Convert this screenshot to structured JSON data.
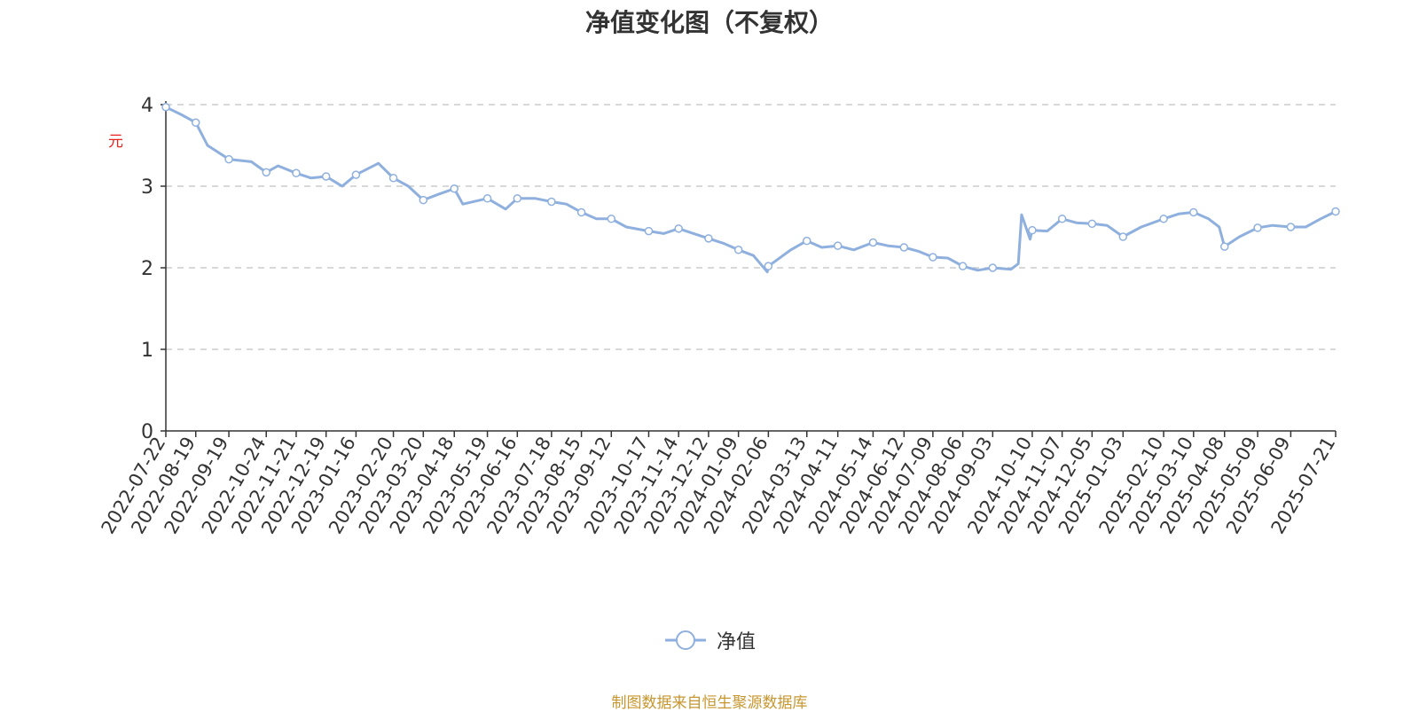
{
  "chart_data": {
    "type": "line",
    "title": "净值变化图（不复权）",
    "ylabel": "元",
    "xlabel": "",
    "ylim": [
      0,
      4
    ],
    "y_ticks": [
      "0",
      "1",
      "2",
      "3",
      "4"
    ],
    "grid": true,
    "legend_position": "bottom-center",
    "x_tick_labels": [
      "2022-07-22",
      "2022-08-19",
      "2022-09-19",
      "2022-10-24",
      "2022-11-21",
      "2022-12-19",
      "2023-01-16",
      "2023-02-20",
      "2023-03-20",
      "2023-04-18",
      "2023-05-19",
      "2023-06-16",
      "2023-07-18",
      "2023-08-15",
      "2023-09-12",
      "2023-10-17",
      "2023-11-14",
      "2023-12-12",
      "2024-01-09",
      "2024-02-06",
      "2024-03-13",
      "2024-04-11",
      "2024-05-14",
      "2024-06-12",
      "2024-07-09",
      "2024-08-06",
      "2024-09-03",
      "2024-10-10",
      "2024-11-07",
      "2024-12-05",
      "2025-01-03",
      "2025-02-10",
      "2025-03-10",
      "2025-04-08",
      "2025-05-09",
      "2025-06-09",
      "2025-07-21"
    ],
    "series": [
      {
        "name": "净值",
        "color": "#8fb0de",
        "x": [
          "2022-07-22",
          "2022-08-05",
          "2022-08-19",
          "2022-08-30",
          "2022-09-19",
          "2022-10-10",
          "2022-10-24",
          "2022-11-04",
          "2022-11-21",
          "2022-12-05",
          "2022-12-19",
          "2023-01-03",
          "2023-01-16",
          "2023-02-06",
          "2023-02-20",
          "2023-03-06",
          "2023-03-20",
          "2023-04-03",
          "2023-04-18",
          "2023-04-26",
          "2023-05-19",
          "2023-06-05",
          "2023-06-16",
          "2023-07-03",
          "2023-07-18",
          "2023-08-01",
          "2023-08-15",
          "2023-08-29",
          "2023-09-12",
          "2023-09-26",
          "2023-10-17",
          "2023-10-31",
          "2023-11-14",
          "2023-11-28",
          "2023-12-12",
          "2023-12-26",
          "2024-01-09",
          "2024-01-23",
          "2024-02-05",
          "2024-02-06",
          "2024-02-27",
          "2024-03-13",
          "2024-03-27",
          "2024-04-11",
          "2024-04-26",
          "2024-05-14",
          "2024-05-28",
          "2024-06-12",
          "2024-06-26",
          "2024-07-09",
          "2024-07-23",
          "2024-08-06",
          "2024-08-20",
          "2024-09-03",
          "2024-09-20",
          "2024-09-27",
          "2024-09-30",
          "2024-10-08",
          "2024-10-10",
          "2024-10-24",
          "2024-11-07",
          "2024-11-21",
          "2024-12-05",
          "2024-12-19",
          "2025-01-03",
          "2025-01-20",
          "2025-02-10",
          "2025-02-24",
          "2025-03-10",
          "2025-03-24",
          "2025-04-03",
          "2025-04-08",
          "2025-04-22",
          "2025-05-09",
          "2025-05-23",
          "2025-06-09",
          "2025-06-23",
          "2025-07-07",
          "2025-07-21"
        ],
        "y": [
          3.97,
          3.88,
          3.78,
          3.5,
          3.33,
          3.3,
          3.17,
          3.25,
          3.16,
          3.1,
          3.12,
          3.0,
          3.14,
          3.28,
          3.1,
          3.0,
          2.83,
          2.9,
          2.97,
          2.78,
          2.85,
          2.72,
          2.85,
          2.85,
          2.81,
          2.78,
          2.68,
          2.6,
          2.6,
          2.5,
          2.45,
          2.42,
          2.48,
          2.42,
          2.36,
          2.3,
          2.22,
          2.15,
          1.95,
          2.02,
          2.22,
          2.33,
          2.25,
          2.27,
          2.22,
          2.31,
          2.27,
          2.25,
          2.2,
          2.13,
          2.12,
          2.02,
          1.97,
          2.0,
          1.98,
          2.05,
          2.65,
          2.35,
          2.46,
          2.45,
          2.6,
          2.55,
          2.54,
          2.52,
          2.38,
          2.5,
          2.6,
          2.66,
          2.68,
          2.6,
          2.5,
          2.26,
          2.38,
          2.49,
          2.52,
          2.5,
          2.5,
          2.6,
          2.69
        ]
      }
    ]
  },
  "legend": {
    "label": "净值"
  },
  "source": "制图数据来自恒生聚源数据库"
}
